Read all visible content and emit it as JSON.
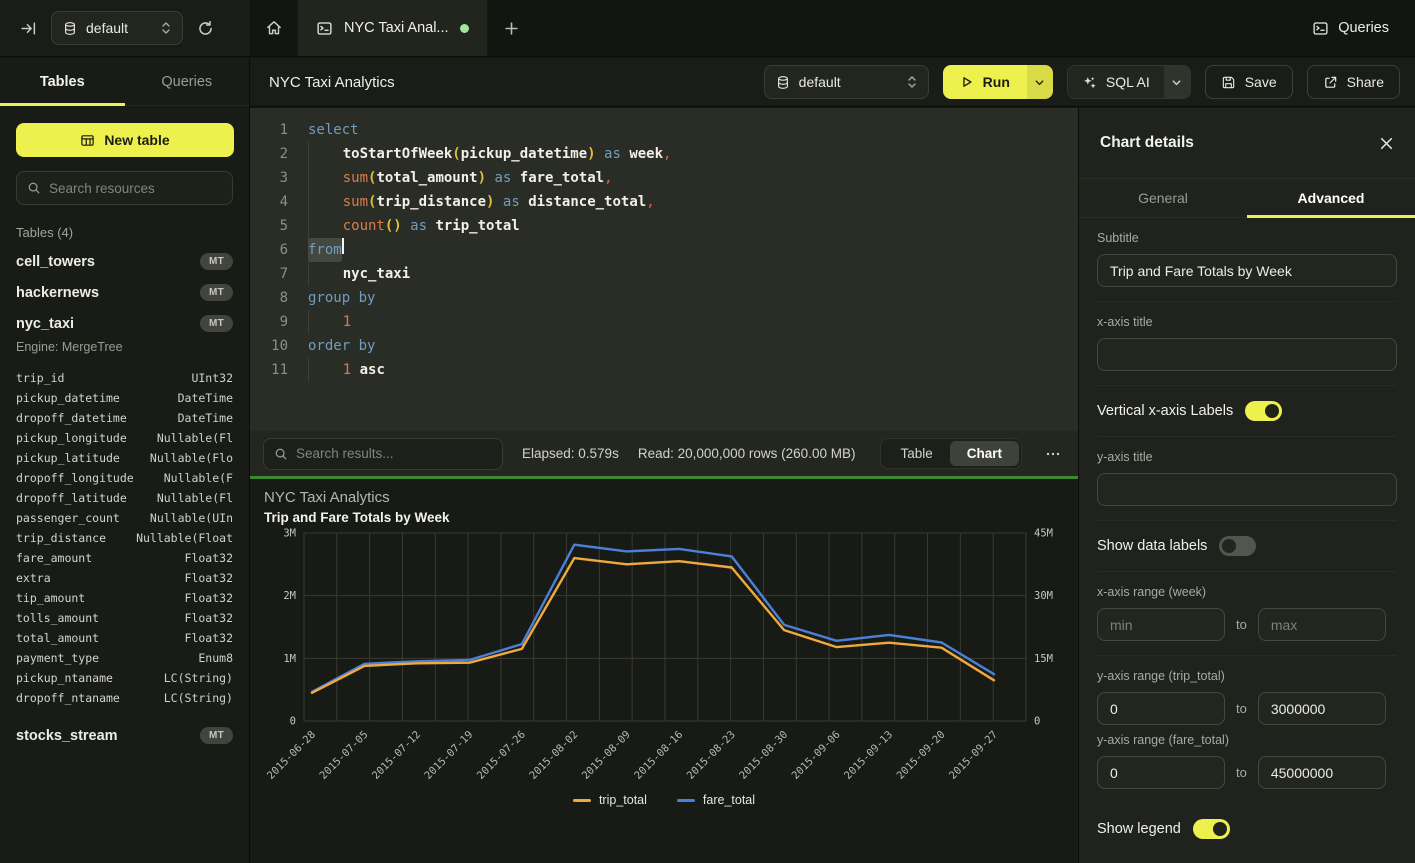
{
  "colors": {
    "accent": "#eef04e",
    "run_chevron_bg": "#d9db46",
    "green_separator": "#3e8a33",
    "tab_dot_green": "#9fe6a0",
    "series_trip_total": "#f0a93c",
    "series_fare_total": "#4c80d8"
  },
  "topbar": {
    "database": "default",
    "tab_title": "NYC Taxi Anal...",
    "queries": "Queries"
  },
  "sidebar": {
    "tab_tables": "Tables",
    "tab_queries": "Queries",
    "new_table": "New table",
    "search_placeholder": "Search resources",
    "section": "Tables (4)",
    "tables": [
      {
        "name": "cell_towers",
        "badge": "MT"
      },
      {
        "name": "hackernews",
        "badge": "MT"
      },
      {
        "name": "nyc_taxi",
        "badge": "MT"
      },
      {
        "name": "stocks_stream",
        "badge": "MT"
      }
    ],
    "nyc_taxi_engine": "Engine: MergeTree",
    "columns": [
      [
        "trip_id",
        "UInt32"
      ],
      [
        "pickup_datetime",
        "DateTime"
      ],
      [
        "dropoff_datetime",
        "DateTime"
      ],
      [
        "pickup_longitude",
        "Nullable(Fl"
      ],
      [
        "pickup_latitude",
        "Nullable(Flo"
      ],
      [
        "dropoff_longitude",
        "Nullable(F"
      ],
      [
        "dropoff_latitude",
        "Nullable(Fl"
      ],
      [
        "passenger_count",
        "Nullable(UIn"
      ],
      [
        "trip_distance",
        "Nullable(Float"
      ],
      [
        "fare_amount",
        "Float32"
      ],
      [
        "extra",
        "Float32"
      ],
      [
        "tip_amount",
        "Float32"
      ],
      [
        "tolls_amount",
        "Float32"
      ],
      [
        "total_amount",
        "Float32"
      ],
      [
        "payment_type",
        "Enum8"
      ],
      [
        "pickup_ntaname",
        "LC(String)"
      ],
      [
        "dropoff_ntaname",
        "LC(String)"
      ]
    ]
  },
  "toolbar": {
    "title": "NYC Taxi Analytics",
    "database": "default",
    "run": "Run",
    "sql_ai": "SQL AI",
    "save": "Save",
    "share": "Share"
  },
  "editor": {
    "lines": [
      [
        [
          "kw",
          "select"
        ]
      ],
      [
        [
          "ind",
          "    "
        ],
        [
          "id",
          "toStartOfWeek"
        ],
        [
          "par",
          "("
        ],
        [
          "id",
          "pickup_datetime"
        ],
        [
          "par",
          ")"
        ],
        [
          "kw",
          " as "
        ],
        [
          "id",
          "week"
        ],
        [
          "pun",
          ","
        ]
      ],
      [
        [
          "ind",
          "    "
        ],
        [
          "fn",
          "sum"
        ],
        [
          "par",
          "("
        ],
        [
          "id",
          "total_amount"
        ],
        [
          "par",
          ")"
        ],
        [
          "kw",
          " as "
        ],
        [
          "id",
          "fare_total"
        ],
        [
          "pun",
          ","
        ]
      ],
      [
        [
          "ind",
          "    "
        ],
        [
          "fn",
          "sum"
        ],
        [
          "par",
          "("
        ],
        [
          "id",
          "trip_distance"
        ],
        [
          "par",
          ")"
        ],
        [
          "kw",
          " as "
        ],
        [
          "id",
          "distance_total"
        ],
        [
          "pun",
          ","
        ]
      ],
      [
        [
          "ind",
          "    "
        ],
        [
          "fn",
          "count"
        ],
        [
          "par",
          "()"
        ],
        [
          "kw",
          " as "
        ],
        [
          "id",
          "trip_total"
        ]
      ],
      [
        [
          "kw sel",
          "from"
        ],
        [
          "caret",
          ""
        ]
      ],
      [
        [
          "ind",
          "    "
        ],
        [
          "id",
          "nyc_taxi"
        ]
      ],
      [
        [
          "kw",
          "group by"
        ]
      ],
      [
        [
          "ind",
          "    "
        ],
        [
          "num",
          "1"
        ]
      ],
      [
        [
          "kw",
          "order by"
        ]
      ],
      [
        [
          "ind",
          "    "
        ],
        [
          "num",
          "1"
        ],
        [
          "id",
          " asc"
        ]
      ]
    ]
  },
  "results_bar": {
    "search_placeholder": "Search results...",
    "elapsed": "Elapsed: 0.579s",
    "read": "Read: 20,000,000 rows (260.00 MB)",
    "view_table": "Table",
    "view_chart": "Chart"
  },
  "chart_data": {
    "type": "line",
    "title": "NYC Taxi Analytics",
    "subtitle": "Trip and Fare Totals by Week",
    "categories": [
      "2015-06-28",
      "2015-07-05",
      "2015-07-12",
      "2015-07-19",
      "2015-07-26",
      "2015-08-02",
      "2015-08-09",
      "2015-08-16",
      "2015-08-23",
      "2015-08-30",
      "2015-09-06",
      "2015-09-13",
      "2015-09-20",
      "2015-09-27"
    ],
    "series": [
      {
        "name": "trip_total",
        "color": "#f0a93c",
        "axis": "left",
        "values": [
          450000,
          880000,
          920000,
          930000,
          1150000,
          2600000,
          2500000,
          2550000,
          2450000,
          1450000,
          1180000,
          1250000,
          1170000,
          650000
        ]
      },
      {
        "name": "fare_total",
        "color": "#4c80d8",
        "axis": "right",
        "values": [
          7000000,
          13700000,
          14300000,
          14600000,
          18400000,
          42200000,
          40600000,
          41200000,
          39400000,
          23000000,
          19200000,
          20600000,
          18800000,
          11200000
        ]
      }
    ],
    "left_axis": {
      "max": 3000000,
      "ticks": [
        "3M",
        "2M",
        "1M",
        "0"
      ]
    },
    "right_axis": {
      "max": 45000000,
      "ticks": [
        "45M",
        "30M",
        "15M",
        "0"
      ]
    },
    "grid": true,
    "legend_position": "bottom",
    "x_labels_rotated": true
  },
  "panel": {
    "title": "Chart details",
    "tab_general": "General",
    "tab_advanced": "Advanced",
    "subtitle_label": "Subtitle",
    "subtitle_value": "Trip and Fare Totals by Week",
    "xaxis_title_label": "x-axis title",
    "vertical_labels": "Vertical x-axis Labels",
    "yaxis_title_label": "y-axis title",
    "show_data_labels": "Show data labels",
    "xaxis_range_label": "x-axis range (week)",
    "min_placeholder": "min",
    "max_placeholder": "max",
    "to": "to",
    "yaxis_range_trip_label": "y-axis range (trip_total)",
    "trip_from": "0",
    "trip_to": "3000000",
    "yaxis_range_fare_label": "y-axis range (fare_total)",
    "fare_from": "0",
    "fare_to": "45000000",
    "show_legend": "Show legend"
  }
}
